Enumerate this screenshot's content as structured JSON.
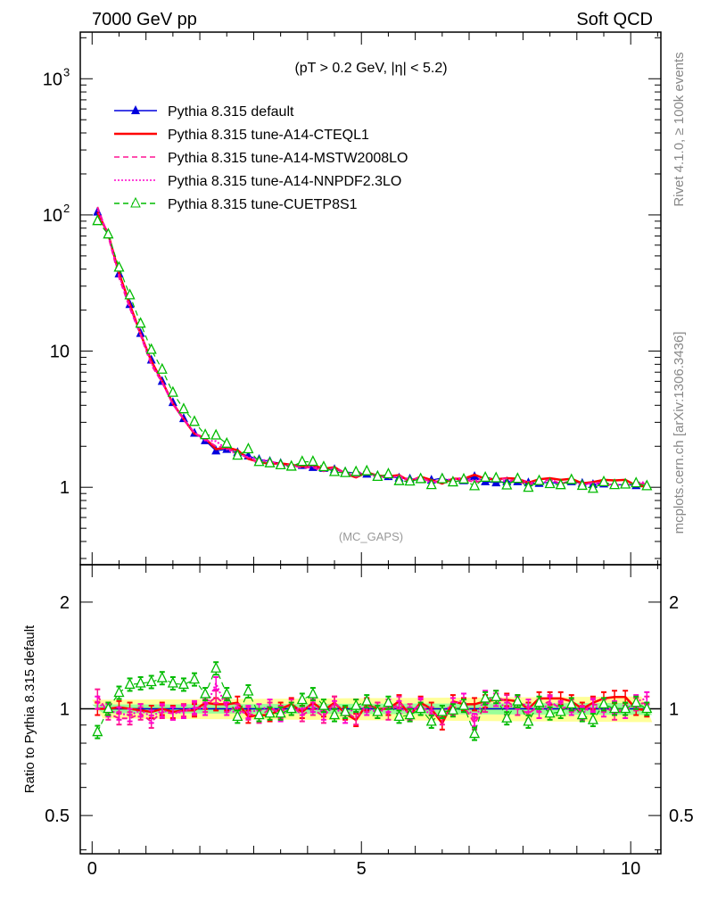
{
  "chart_data": [
    {
      "type": "line",
      "title_left": "7000 GeV pp",
      "title_right": "Soft QCD",
      "annotation": "(pT > 0.2 GeV, |η| < 5.2)",
      "analysis": "(MC_GAPS)",
      "side_label_top": "Rivet 4.1.0, ≥ 100k events",
      "side_label_bottom": "mcplots.cern.ch [arXiv:1306.3436]",
      "yscale": "log",
      "ylim": [
        0.27,
        2200
      ],
      "xlim": [
        -0.22,
        10.56
      ],
      "yticks": [
        {
          "v": 1,
          "label": "1"
        },
        {
          "v": 10,
          "label": "10"
        },
        {
          "v": 100,
          "label": "10",
          "exp": "2"
        },
        {
          "v": 1000,
          "label": "10",
          "exp": "3"
        }
      ],
      "legend_position": "top-left",
      "x": [
        0.1,
        0.3,
        0.5,
        0.7,
        0.9,
        1.1,
        1.3,
        1.5,
        1.7,
        1.9,
        2.1,
        2.3,
        2.5,
        2.7,
        2.9,
        3.1,
        3.3,
        3.5,
        3.7,
        3.9,
        4.1,
        4.3,
        4.5,
        4.7,
        4.9,
        5.1,
        5.3,
        5.5,
        5.7,
        5.9,
        6.1,
        6.3,
        6.5,
        6.7,
        6.9,
        7.1,
        7.3,
        7.5,
        7.7,
        7.9,
        8.1,
        8.3,
        8.5,
        8.7,
        8.9,
        9.1,
        9.3,
        9.5,
        9.7,
        9.9,
        10.1,
        10.3
      ],
      "reference_values": [
        105,
        72,
        37,
        22,
        13.5,
        8.6,
        6.0,
        4.2,
        3.2,
        2.5,
        2.2,
        1.85,
        1.9,
        1.8,
        1.7,
        1.6,
        1.55,
        1.5,
        1.42,
        1.45,
        1.4,
        1.38,
        1.35,
        1.3,
        1.27,
        1.25,
        1.22,
        1.2,
        1.17,
        1.15,
        1.15,
        1.13,
        1.17,
        1.1,
        1.12,
        1.2,
        1.1,
        1.08,
        1.1,
        1.1,
        1.08,
        1.07,
        1.09,
        1.06,
        1.1,
        1.07,
        1.05,
        1.06,
        1.04,
        1.05,
        1.03,
        1.02
      ],
      "series": [
        {
          "name": "Pythia 8.315 default",
          "color": "#0000dd",
          "style": "solid",
          "marker": "filled-triangle",
          "ratio": [
            1,
            1,
            1,
            1,
            1,
            1,
            1,
            1,
            1,
            1,
            1,
            1,
            1,
            1,
            1,
            1,
            1,
            1,
            1,
            1,
            1,
            1,
            1,
            1,
            1,
            1,
            1,
            1,
            1,
            1,
            1,
            1,
            1,
            1,
            1,
            1,
            1,
            1,
            1,
            1,
            1,
            1,
            1,
            1,
            1,
            1,
            1,
            1,
            1,
            1,
            1,
            1
          ]
        },
        {
          "name": "Pythia 8.315 tune-A14-CTEQL1",
          "color": "#ff0000",
          "style": "solid",
          "marker": "none",
          "ratio": [
            1.0,
            1.0,
            1.01,
            1.0,
            0.99,
            0.98,
            1.0,
            0.98,
            0.99,
            0.99,
            1.04,
            1.03,
            1.03,
            1.04,
            0.95,
            0.96,
            0.96,
            1.0,
            1.03,
            0.98,
            1.04,
            0.99,
            1.04,
            0.97,
            0.93,
            1.03,
            1.0,
            1.0,
            1.05,
            0.96,
            1.04,
            1.0,
            0.91,
            1.05,
            1.03,
            1.03,
            1.05,
            1.06,
            1.06,
            1.05,
            1.0,
            1.07,
            1.07,
            1.07,
            1.05,
            1.0,
            1.04,
            1.07,
            1.08,
            1.08,
            1.0,
            0.99
          ]
        },
        {
          "name": "Pythia 8.315 tune-A14-MSTW2008LO",
          "color": "#ff1493",
          "style": "dashed",
          "marker": "none",
          "ratio": [
            1.09,
            0.97,
            0.94,
            0.94,
            0.97,
            0.92,
            0.98,
            0.97,
            0.99,
            1.0,
            1.02,
            1.08,
            1.02,
            0.99,
            0.97,
            0.95,
            1.0,
            0.98,
            1.02,
            0.96,
            1.0,
            0.95,
            1.04,
            0.98,
            0.94,
            1.02,
            1.0,
            0.97,
            1.04,
            0.99,
            1.02,
            0.97,
            0.94,
            1.0,
            1.02,
            0.91,
            1.02,
            1.08,
            1.05,
            1.0,
            0.97,
            1.02,
            1.05,
            1.0,
            1.02,
            0.98,
            1.03,
            1.02,
            0.97,
            1.0,
            1.03,
            1.04
          ]
        },
        {
          "name": "Pythia 8.315 tune-A14-NNPDF2.3LO",
          "color": "#ff00cc",
          "style": "dotted",
          "marker": "none",
          "ratio": [
            1.04,
            0.99,
            0.97,
            0.96,
            0.99,
            0.95,
            0.99,
            0.97,
            0.98,
            1.01,
            1.0,
            1.18,
            1.0,
            0.97,
            0.98,
            0.99,
            1.02,
            0.96,
            1.0,
            1.0,
            1.02,
            0.97,
            1.01,
            0.95,
            1.02,
            1.0,
            0.98,
            1.02,
            1.01,
            0.97,
            1.03,
            0.95,
            0.98,
            1.03,
            1.06,
            0.93,
            1.08,
            1.06,
            1.0,
            1.04,
            1.02,
            0.98,
            1.04,
            1.01,
            1.0,
            0.97,
            1.02,
            0.99,
            1.01,
            0.98,
            1.05,
            1.07
          ]
        },
        {
          "name": "Pythia 8.315 tune-CUETP8S1",
          "color": "#00bb00",
          "style": "dashed",
          "marker": "open-triangle",
          "ratio": [
            0.86,
            1.0,
            1.11,
            1.17,
            1.18,
            1.19,
            1.22,
            1.18,
            1.17,
            1.21,
            1.1,
            1.3,
            1.1,
            0.95,
            1.12,
            0.96,
            0.97,
            0.97,
            1.0,
            1.06,
            1.1,
            1.02,
            0.96,
            0.98,
            1.02,
            1.05,
            0.98,
            1.04,
            0.95,
            0.96,
            1.0,
            0.92,
            0.98,
            0.99,
            1.02,
            0.85,
            1.07,
            1.08,
            0.94,
            1.05,
            0.92,
            1.04,
            0.97,
            0.98,
            1.03,
            0.96,
            0.93,
            1.03,
            1.0,
            1.0,
            1.04,
            1.0
          ]
        }
      ]
    },
    {
      "type": "line",
      "ylabel": "Ratio to Pythia 8.315 default",
      "yscale": "log",
      "ylim": [
        0.39,
        2.55
      ],
      "yticks": [
        {
          "v": 0.5,
          "label": "0.5"
        },
        {
          "v": 1,
          "label": "1"
        },
        {
          "v": 2,
          "label": "2"
        }
      ],
      "xticks": [
        {
          "v": 0,
          "label": "0"
        },
        {
          "v": 5,
          "label": "5"
        },
        {
          "v": 10,
          "label": "10"
        }
      ],
      "band_inner": 0.035,
      "band_outer": 0.075
    }
  ]
}
